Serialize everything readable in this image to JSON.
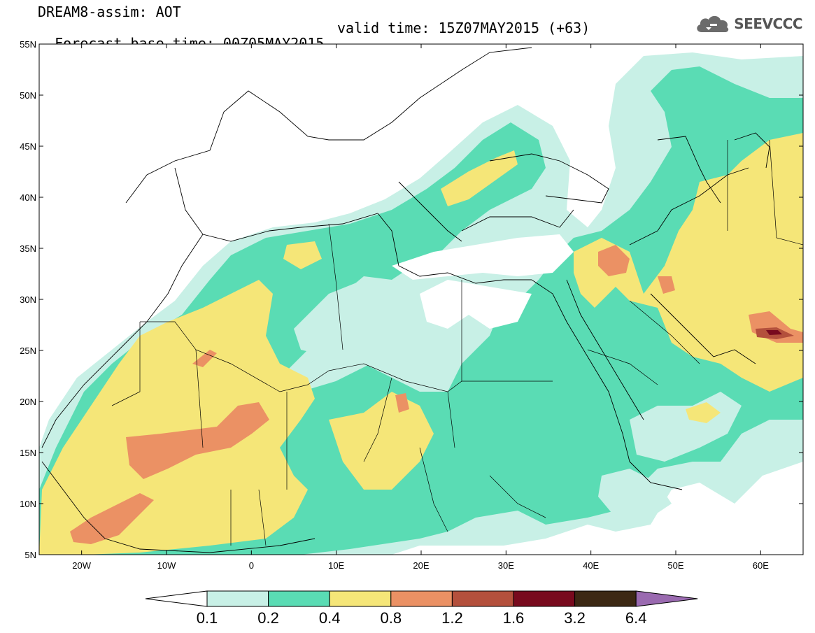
{
  "header": {
    "line1": "DREAM8-assim: AOT",
    "line2_base": "Forecast base time: 00Z05MAY2015",
    "line2_valid": "valid time: 15Z07MAY2015 (+63)",
    "logo_text": "SEEVCCC",
    "logo_icon": "cloud-icon"
  },
  "map": {
    "extent": {
      "lon": [
        -25,
        65
      ],
      "lat": [
        5,
        55
      ]
    },
    "lat_ticks": [
      {
        "value": 55,
        "label": "55N"
      },
      {
        "value": 50,
        "label": "50N"
      },
      {
        "value": 45,
        "label": "45N"
      },
      {
        "value": 40,
        "label": "40N"
      },
      {
        "value": 35,
        "label": "35N"
      },
      {
        "value": 30,
        "label": "30N"
      },
      {
        "value": 25,
        "label": "25N"
      },
      {
        "value": 20,
        "label": "20N"
      },
      {
        "value": 15,
        "label": "15N"
      },
      {
        "value": 10,
        "label": "10N"
      },
      {
        "value": 5,
        "label": "5N"
      }
    ],
    "lon_ticks": [
      {
        "value": -20,
        "label": "20W"
      },
      {
        "value": -10,
        "label": "10W"
      },
      {
        "value": 0,
        "label": "0"
      },
      {
        "value": 10,
        "label": "10E"
      },
      {
        "value": 20,
        "label": "20E"
      },
      {
        "value": 30,
        "label": "30E"
      },
      {
        "value": 40,
        "label": "40E"
      },
      {
        "value": 50,
        "label": "50E"
      },
      {
        "value": 60,
        "label": "60E"
      }
    ]
  },
  "colorbar": {
    "labels": [
      "0.1",
      "0.2",
      "0.4",
      "0.8",
      "1.2",
      "1.6",
      "3.2",
      "6.4"
    ],
    "colors": [
      "#c8f0e6",
      "#5adcb4",
      "#f5e678",
      "#eb9164",
      "#b4503c",
      "#780a1e",
      "#3c2814"
    ],
    "under_color": "#ffffff",
    "over_color": "#9a6ab0"
  },
  "colors": {
    "aot_0_1": "#c8f0e6",
    "aot_0_2": "#5adcb4",
    "aot_0_4": "#f5e678",
    "aot_0_8": "#eb9164",
    "aot_1_2": "#b4503c",
    "aot_1_6": "#780a1e",
    "border": "#000000"
  }
}
